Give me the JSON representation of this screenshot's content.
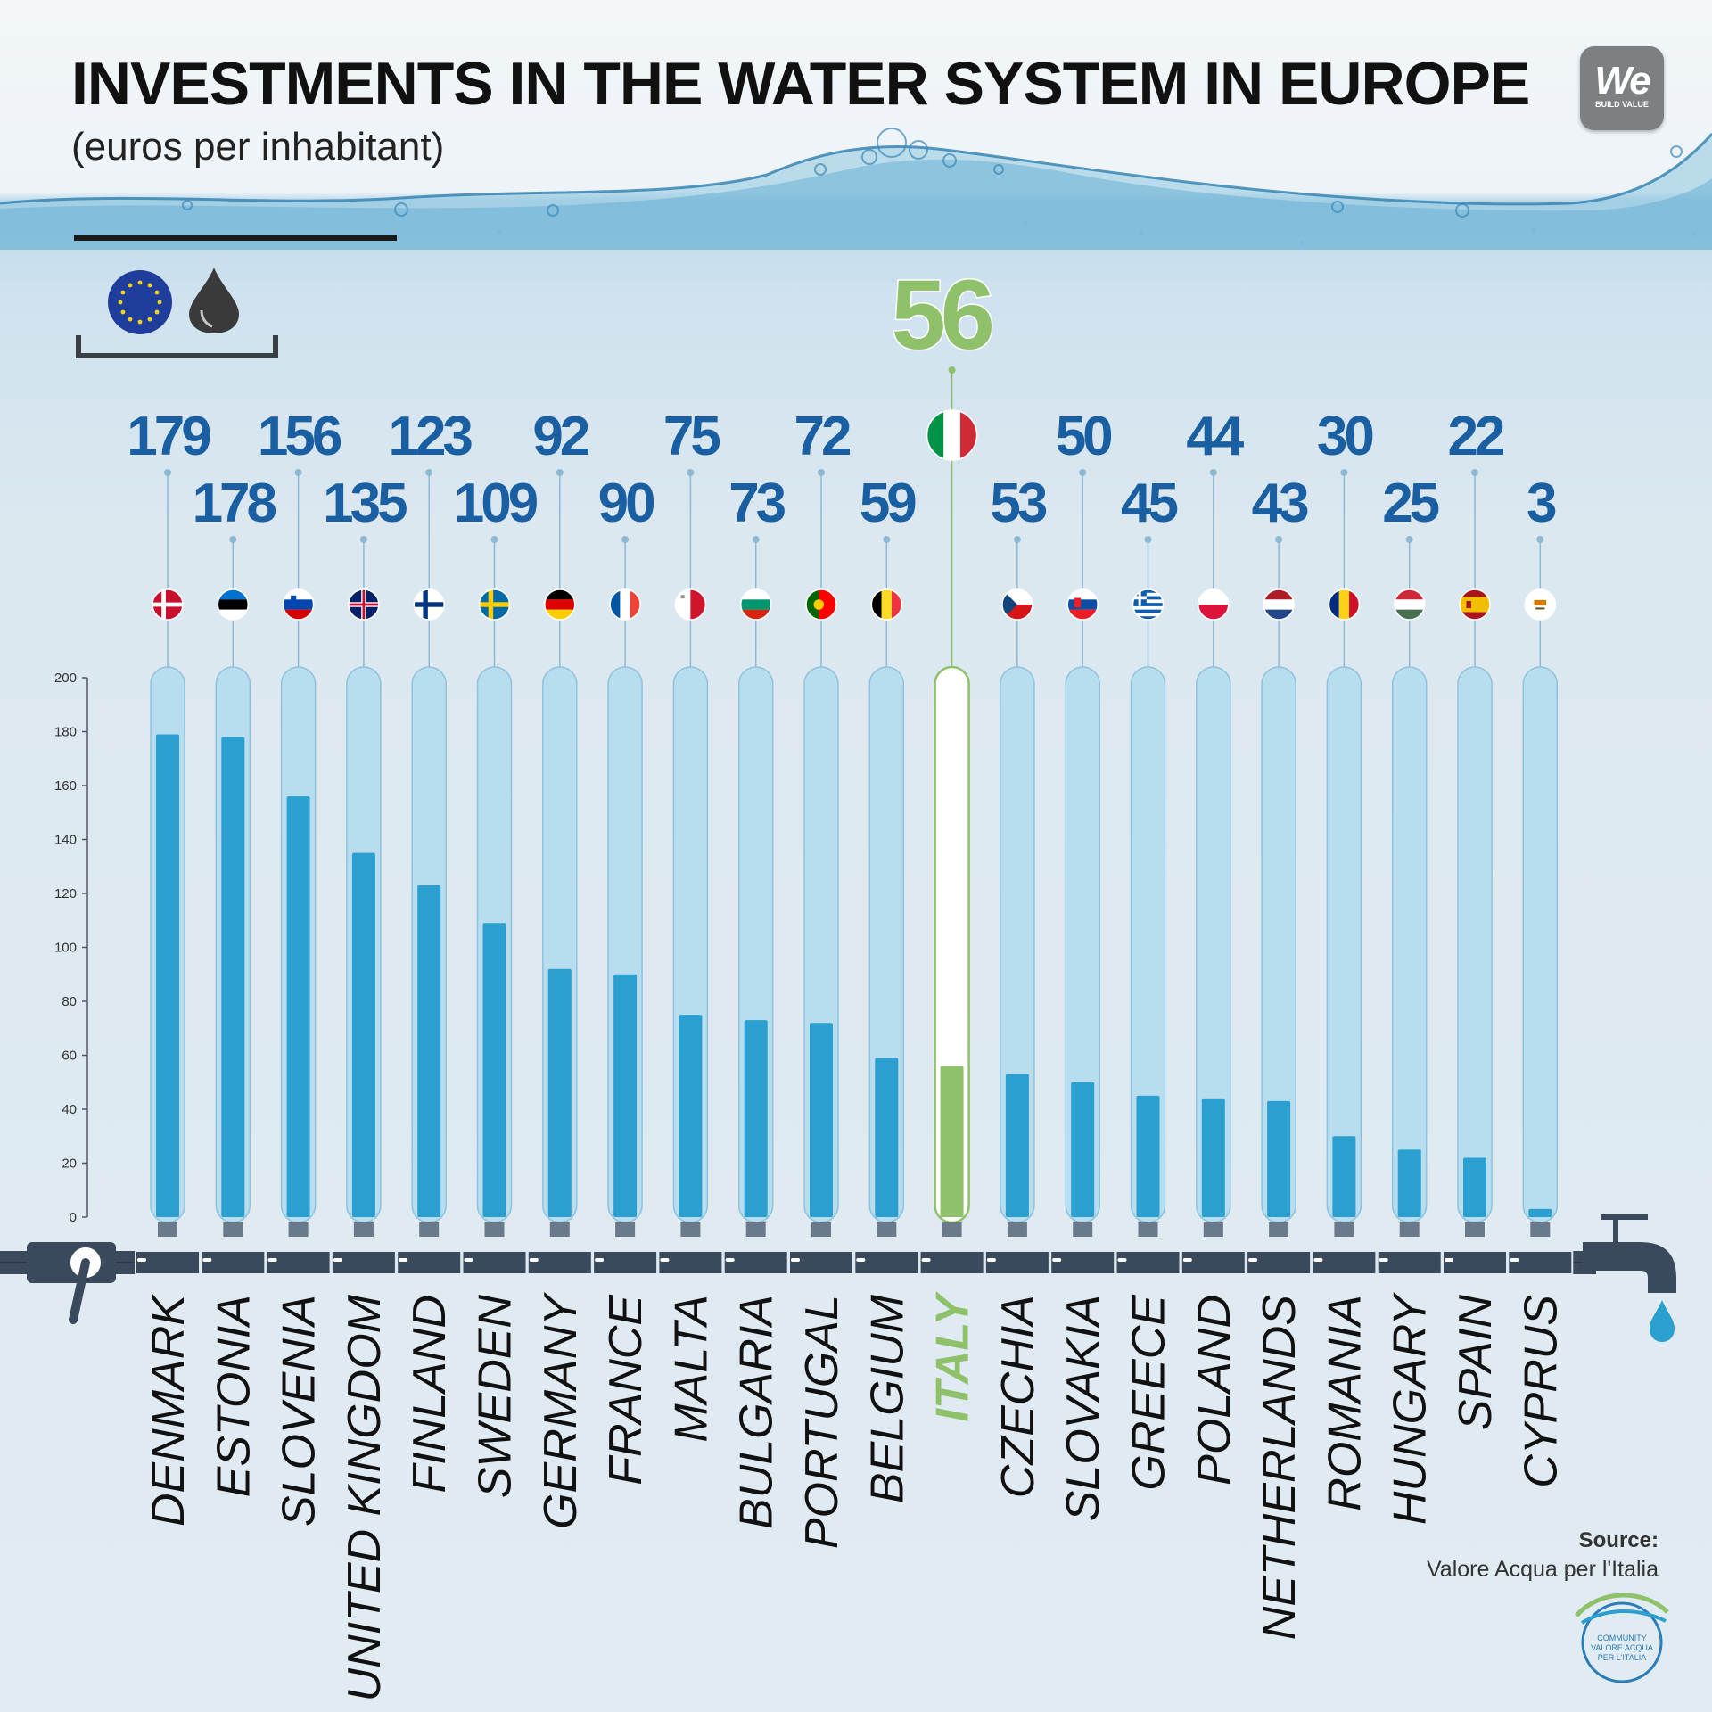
{
  "title": "INVESTMENTS IN THE WATER SYSTEM IN EUROPE",
  "subtitle": "(euros per inhabitant)",
  "logo": {
    "main": "We",
    "tagline": "BUILD VALUE"
  },
  "legend_icons": [
    "eu-flag-icon",
    "water-drop-icon"
  ],
  "source": {
    "label": "Source:",
    "text": "Valore Acqua per l'Italia"
  },
  "community_badge": [
    "COMMUNITY",
    "VALORE ACQUA",
    "PER L'ITALIA"
  ],
  "colors": {
    "bar": "#2b9fcf",
    "tube": "#b7ddee",
    "highlight": "#8fc16b",
    "value": "#1b5fa3",
    "pipe": "#3a4a5c"
  },
  "chart_data": {
    "type": "bar",
    "title": "INVESTMENTS IN THE WATER SYSTEM IN EUROPE",
    "ylabel": "euros per inhabitant",
    "ylim": [
      0,
      200
    ],
    "yticks": [
      0,
      20,
      40,
      60,
      80,
      100,
      120,
      140,
      160,
      180,
      200
    ],
    "highlight": "ITALY",
    "categories": [
      "DENMARK",
      "ESTONIA",
      "SLOVENIA",
      "UNITED KINGDOM",
      "FINLAND",
      "SWEDEN",
      "GERMANY",
      "FRANCE",
      "MALTA",
      "BULGARIA",
      "PORTUGAL",
      "BELGIUM",
      "ITALY",
      "CZECHIA",
      "SLOVAKIA",
      "GREECE",
      "POLAND",
      "NETHERLANDS",
      "ROMANIA",
      "HUNGARY",
      "SPAIN",
      "CYPRUS"
    ],
    "values": [
      179,
      178,
      156,
      135,
      123,
      109,
      92,
      90,
      75,
      73,
      72,
      59,
      56,
      53,
      50,
      45,
      44,
      43,
      30,
      25,
      22,
      3
    ],
    "flags": [
      "denmark-flag-icon",
      "estonia-flag-icon",
      "slovenia-flag-icon",
      "uk-flag-icon",
      "finland-flag-icon",
      "sweden-flag-icon",
      "germany-flag-icon",
      "france-flag-icon",
      "malta-flag-icon",
      "bulgaria-flag-icon",
      "portugal-flag-icon",
      "belgium-flag-icon",
      "italy-flag-icon",
      "czechia-flag-icon",
      "slovakia-flag-icon",
      "greece-flag-icon",
      "poland-flag-icon",
      "netherlands-flag-icon",
      "romania-flag-icon",
      "hungary-flag-icon",
      "spain-flag-icon",
      "cyprus-flag-icon"
    ]
  }
}
